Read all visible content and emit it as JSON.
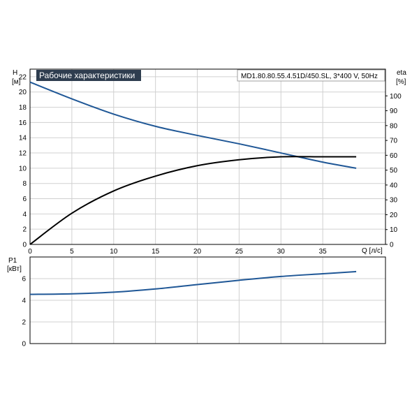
{
  "chart_data": [
    {
      "type": "line",
      "title": "Рабочие характеристики",
      "subtitle": "MD1.80.80.55.4.51D/450.SL, 3*400 V, 50Hz",
      "xlabel": "Q [л/с]",
      "ylabel": "H",
      "ylabel_unit": "[м]",
      "y2label": "eta",
      "y2label_unit": "[%]",
      "xlim": [
        0,
        42.5
      ],
      "ylim": [
        0,
        23
      ],
      "y2lim": [
        0,
        118
      ],
      "xticks": [
        0,
        5,
        10,
        15,
        20,
        25,
        30,
        35
      ],
      "yticks": [
        0,
        2,
        4,
        6,
        8,
        10,
        12,
        14,
        16,
        18,
        20,
        22
      ],
      "y2ticks": [
        0,
        10,
        20,
        30,
        40,
        50,
        60,
        70,
        80,
        90,
        100
      ],
      "grid": true,
      "series": [
        {
          "axis": "left",
          "color": "#1f5796",
          "x": [
            0,
            5,
            10,
            15,
            20,
            25,
            30,
            35,
            39
          ],
          "values": [
            21.3,
            19.1,
            17.1,
            15.5,
            14.3,
            13.2,
            12.0,
            10.8,
            10.0
          ]
        },
        {
          "axis": "right",
          "color": "#000000",
          "x": [
            0,
            5,
            10,
            15,
            20,
            25,
            30,
            35,
            39
          ],
          "values": [
            0,
            21,
            36,
            46,
            53,
            57,
            59,
            59,
            59
          ]
        }
      ]
    },
    {
      "type": "line",
      "ylabel": "P1",
      "ylabel_unit": "[кВт]",
      "xlim": [
        0,
        42.5
      ],
      "ylim": [
        0,
        8
      ],
      "yticks": [
        0,
        2,
        4,
        6
      ],
      "grid": true,
      "series": [
        {
          "axis": "left",
          "color": "#1f5796",
          "x": [
            0,
            5,
            10,
            15,
            20,
            25,
            30,
            35,
            39
          ],
          "values": [
            4.55,
            4.6,
            4.75,
            5.05,
            5.45,
            5.85,
            6.2,
            6.45,
            6.65
          ]
        }
      ]
    }
  ]
}
